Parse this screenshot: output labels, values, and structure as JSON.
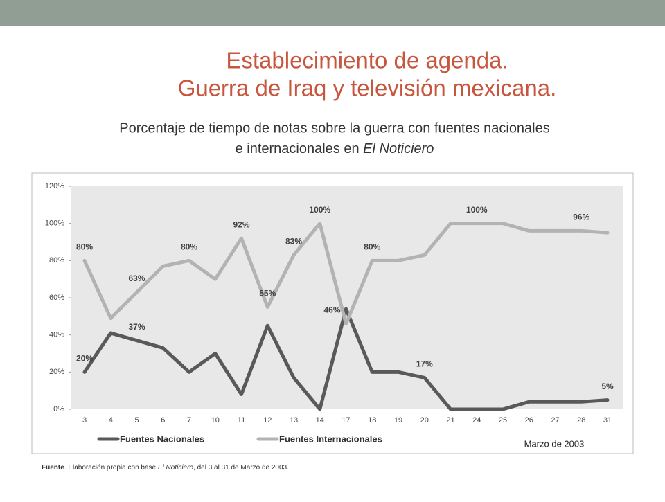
{
  "title_lines": [
    "Establecimiento de agenda.",
    "Guerra de Iraq y televisión mexicana."
  ],
  "subtitle": {
    "line1": "Porcentaje de tiempo de notas sobre la guerra con fuentes nacionales",
    "line2": "e internacionales en ",
    "line2_italic": "El Noticiero"
  },
  "footer": {
    "label": "Fuente",
    "text1": ". Elaboración propia con base ",
    "italic": "El Noticiero",
    "text2": ", del 3 al 31 de Marzo de 2003."
  },
  "chart_data": {
    "type": "line",
    "x_label": "Marzo de 2003",
    "categories": [
      "3",
      "4",
      "5",
      "6",
      "7",
      "10",
      "11",
      "12",
      "13",
      "14",
      "17",
      "18",
      "19",
      "20",
      "21",
      "24",
      "25",
      "26",
      "27",
      "28",
      "31"
    ],
    "series": [
      {
        "name": "Fuentes Nacionales",
        "color": "#595959",
        "values": [
          20,
          41,
          37,
          33,
          20,
          30,
          8,
          45,
          17,
          0,
          54,
          20,
          20,
          17,
          0,
          0,
          0,
          4,
          4,
          4,
          5
        ],
        "value_labels": [
          "20%",
          null,
          "37%",
          null,
          null,
          null,
          null,
          null,
          null,
          null,
          null,
          null,
          null,
          "17%",
          null,
          null,
          null,
          null,
          null,
          null,
          "5%"
        ]
      },
      {
        "name": "Fuentes Internacionales",
        "color": "#b3b3b3",
        "values": [
          80,
          49,
          63,
          77,
          80,
          70,
          92,
          55,
          83,
          100,
          46,
          80,
          80,
          83,
          100,
          100,
          100,
          96,
          96,
          96,
          95
        ],
        "value_labels": [
          "80%",
          null,
          "63%",
          null,
          "80%",
          null,
          "92%",
          "55%",
          "83%",
          "100%",
          "46%",
          "80%",
          null,
          null,
          null,
          "100%",
          null,
          null,
          null,
          "96%",
          null
        ]
      }
    ],
    "ylim": [
      0,
      120
    ],
    "yticks": [
      {
        "value": 0,
        "label": "0%"
      },
      {
        "value": 20,
        "label": "20%"
      },
      {
        "value": 40,
        "label": "40%"
      },
      {
        "value": 60,
        "label": "60%"
      },
      {
        "value": 80,
        "label": "80%"
      },
      {
        "value": 100,
        "label": "100%"
      },
      {
        "value": 120,
        "label": "120%"
      }
    ],
    "legend": "bottom"
  }
}
